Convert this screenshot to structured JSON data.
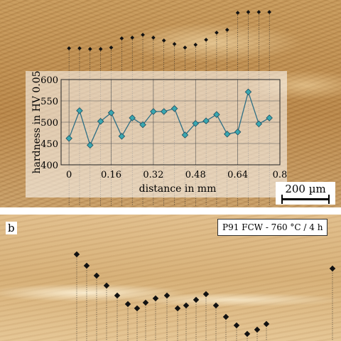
{
  "panels": {
    "b_label": "b",
    "b_caption": "P91 FCW - 760 °C / 4 h",
    "scale_label": "200 µm"
  },
  "chart_data": {
    "type": "line",
    "title": "",
    "xlabel": "distance in mm",
    "ylabel": "hardness in HV 0.05",
    "xlim": [
      -0.03,
      0.8
    ],
    "ylim": [
      400,
      600
    ],
    "x_ticks": [
      0,
      0.16,
      0.32,
      0.48,
      0.64,
      0.8
    ],
    "x_tick_labels": [
      "0",
      "0.16",
      "0.32",
      "0.48",
      "0.64",
      "0.8"
    ],
    "y_ticks": [
      400,
      450,
      500,
      550,
      600
    ],
    "y_tick_labels": [
      "400",
      "450",
      "500",
      "550",
      "600"
    ],
    "grid": true,
    "marker": "diamond",
    "color": "#3aa7b0",
    "series": [
      {
        "x": [
          0,
          0.04,
          0.08,
          0.12,
          0.16,
          0.2,
          0.24,
          0.28,
          0.32,
          0.36,
          0.4,
          0.44,
          0.48,
          0.52,
          0.56,
          0.6,
          0.64,
          0.68,
          0.72,
          0.76
        ],
        "values": [
          462,
          527,
          446,
          502,
          522,
          467,
          510,
          494,
          525,
          525,
          532,
          470,
          497,
          503,
          518,
          472,
          477,
          571,
          496,
          510
        ]
      }
    ]
  }
}
